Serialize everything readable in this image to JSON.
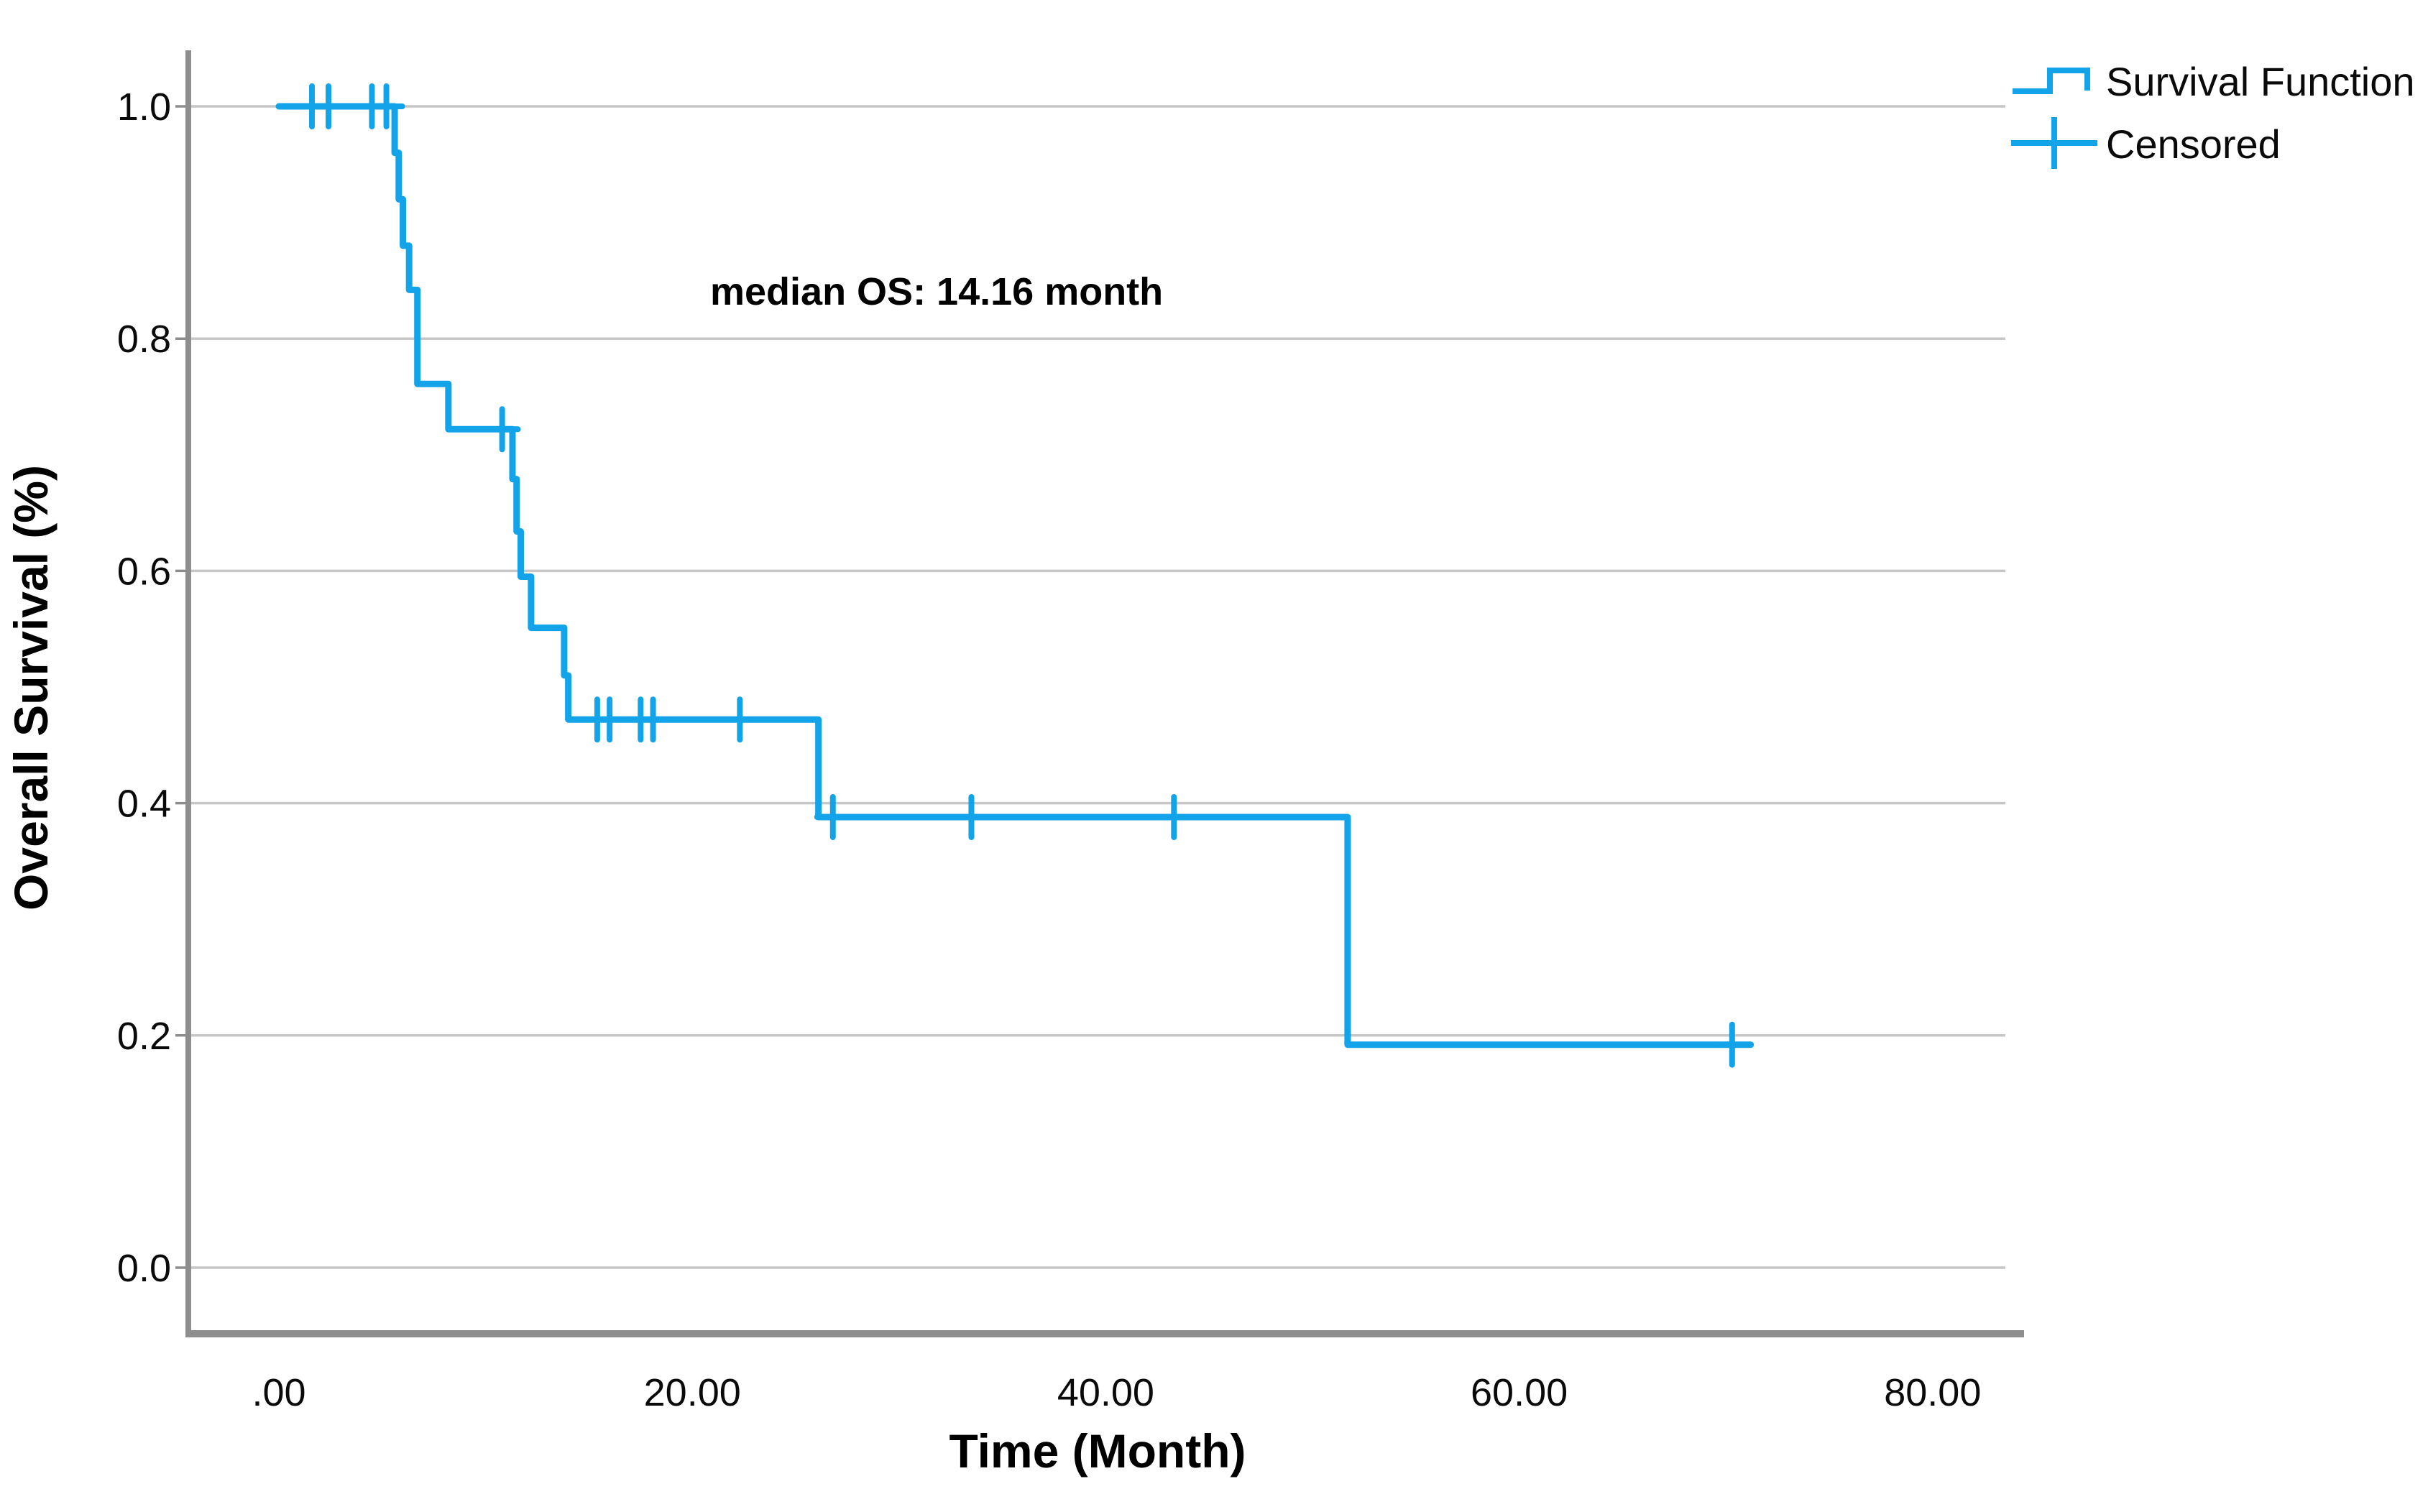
{
  "chart_data": {
    "type": "line",
    "subtype": "kaplan-meier-step-survival",
    "title": "",
    "annotation": "median OS: 14.16 month",
    "xlabel": "Time (Month)",
    "ylabel": "Overall Survival (%)",
    "grid": "horizontal",
    "legend_position": "top-right",
    "legend": [
      {
        "label": "Survival Function",
        "marker": "step-line-icon"
      },
      {
        "label": "Censored",
        "marker": "plus-icon"
      }
    ],
    "x_ticks": [
      {
        "value": 0,
        "label": ".00"
      },
      {
        "value": 20,
        "label": "20.00"
      },
      {
        "value": 40,
        "label": "40.00"
      },
      {
        "value": 60,
        "label": "60.00"
      },
      {
        "value": 80,
        "label": "80.00"
      }
    ],
    "y_ticks": [
      {
        "value": 0.0,
        "label": "0.0"
      },
      {
        "value": 0.2,
        "label": "0.2"
      },
      {
        "value": 0.4,
        "label": "0.4"
      },
      {
        "value": 0.6,
        "label": "0.6"
      },
      {
        "value": 0.8,
        "label": "0.8"
      },
      {
        "value": 1.0,
        "label": "1.0"
      }
    ],
    "xlim": [
      -4.4,
      84.5
    ],
    "ylim": [
      -0.057,
      1.05
    ],
    "series": [
      {
        "name": "Survival Function",
        "steps": [
          [
            0.0,
            1.0
          ],
          [
            5.6,
            0.96
          ],
          [
            5.8,
            0.92
          ],
          [
            6.0,
            0.88
          ],
          [
            6.3,
            0.842
          ],
          [
            6.7,
            0.761
          ],
          [
            8.2,
            0.722
          ],
          [
            11.3,
            0.679
          ],
          [
            11.5,
            0.634
          ],
          [
            11.7,
            0.595
          ],
          [
            12.2,
            0.551
          ],
          [
            13.8,
            0.51
          ],
          [
            14.0,
            0.472
          ],
          [
            26.1,
            0.388
          ],
          [
            51.7,
            0.192
          ]
        ],
        "end_time": 71.2
      }
    ],
    "censored_points": [
      [
        1.6,
        1.0
      ],
      [
        2.4,
        1.0
      ],
      [
        4.5,
        1.0
      ],
      [
        5.2,
        1.0
      ],
      [
        10.8,
        0.722
      ],
      [
        15.4,
        0.472
      ],
      [
        16.0,
        0.472
      ],
      [
        17.5,
        0.472
      ],
      [
        18.1,
        0.472
      ],
      [
        22.3,
        0.472
      ],
      [
        26.8,
        0.388
      ],
      [
        33.5,
        0.388
      ],
      [
        43.3,
        0.388
      ],
      [
        70.3,
        0.192
      ]
    ],
    "colors": {
      "line": "#12A3E8",
      "censor": "#12A3E8",
      "grid": "#C6C6C6",
      "axis": "#8E8E8E",
      "text": "#000000",
      "background": "#FFFFFF"
    }
  }
}
